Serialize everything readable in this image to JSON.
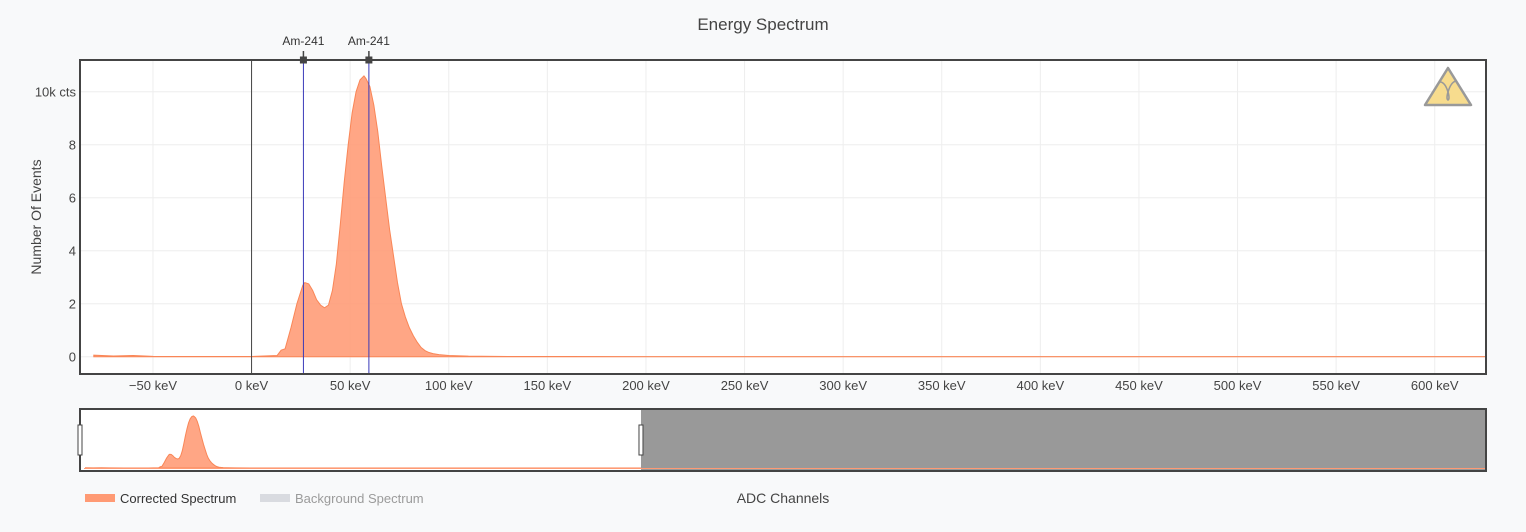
{
  "chart_data": {
    "type": "area",
    "title": "Energy Spectrum",
    "ylabel": "Number Of Events",
    "xlabel": "ADC Channels",
    "x_unit": "keV",
    "y_unit": "cts",
    "xlim": [
      -87,
      626
    ],
    "ylim": [
      -650,
      11200
    ],
    "x_ticks": [
      -50,
      0,
      50,
      100,
      150,
      200,
      250,
      300,
      350,
      400,
      450,
      500,
      550,
      600
    ],
    "x_tick_labels": [
      "−50 keV",
      "0 keV",
      "50 keV",
      "100 keV",
      "150 keV",
      "200 keV",
      "250 keV",
      "300 keV",
      "350 keV",
      "400 keV",
      "450 keV",
      "500 keV",
      "550 keV",
      "600 keV"
    ],
    "y_ticks": [
      0,
      2000,
      4000,
      6000,
      8000,
      10000
    ],
    "y_tick_labels": [
      "0",
      "2",
      "4",
      "6",
      "8",
      "10k cts"
    ],
    "grid": true,
    "legend_position": "bottom-left",
    "zero_line_x": 0,
    "series": [
      {
        "name": "Corrected Spectrum",
        "color": "#ff9a74",
        "visible": true,
        "x": [
          -80,
          -70,
          -60,
          -50,
          -30,
          0,
          13,
          15,
          17,
          20,
          23,
          26,
          27,
          29,
          31,
          33,
          35,
          37,
          39,
          41,
          43,
          45,
          47,
          49,
          51,
          53,
          55,
          57,
          58,
          60,
          62,
          64,
          66,
          68,
          70,
          72,
          74,
          76,
          78,
          80,
          82,
          84,
          86,
          88,
          90,
          92,
          95,
          100,
          110,
          130,
          160,
          626
        ],
        "y": [
          60,
          30,
          50,
          15,
          10,
          10,
          50,
          250,
          300,
          1100,
          2000,
          2700,
          2800,
          2750,
          2500,
          2150,
          1950,
          1850,
          1950,
          2500,
          3500,
          5000,
          6600,
          8000,
          9200,
          10000,
          10450,
          10600,
          10500,
          10200,
          9500,
          8500,
          7200,
          6000,
          4800,
          3800,
          2800,
          2000,
          1500,
          1100,
          800,
          550,
          350,
          230,
          160,
          120,
          80,
          50,
          25,
          12,
          8,
          4
        ]
      },
      {
        "name": "Background Spectrum",
        "color": "#d9dbe0",
        "visible": false
      }
    ],
    "markers": [
      {
        "label": "Am-241",
        "x": 26.3
      },
      {
        "label": "Am-241",
        "x": 59.5
      }
    ],
    "range_slider": {
      "full_x_range": [
        -87,
        1700
      ],
      "selected_range": [
        -87,
        626
      ]
    }
  },
  "icon": "gamma-warning-icon",
  "icon_colors": {
    "fill": "#f7dc8e",
    "stroke": "#999999"
  }
}
